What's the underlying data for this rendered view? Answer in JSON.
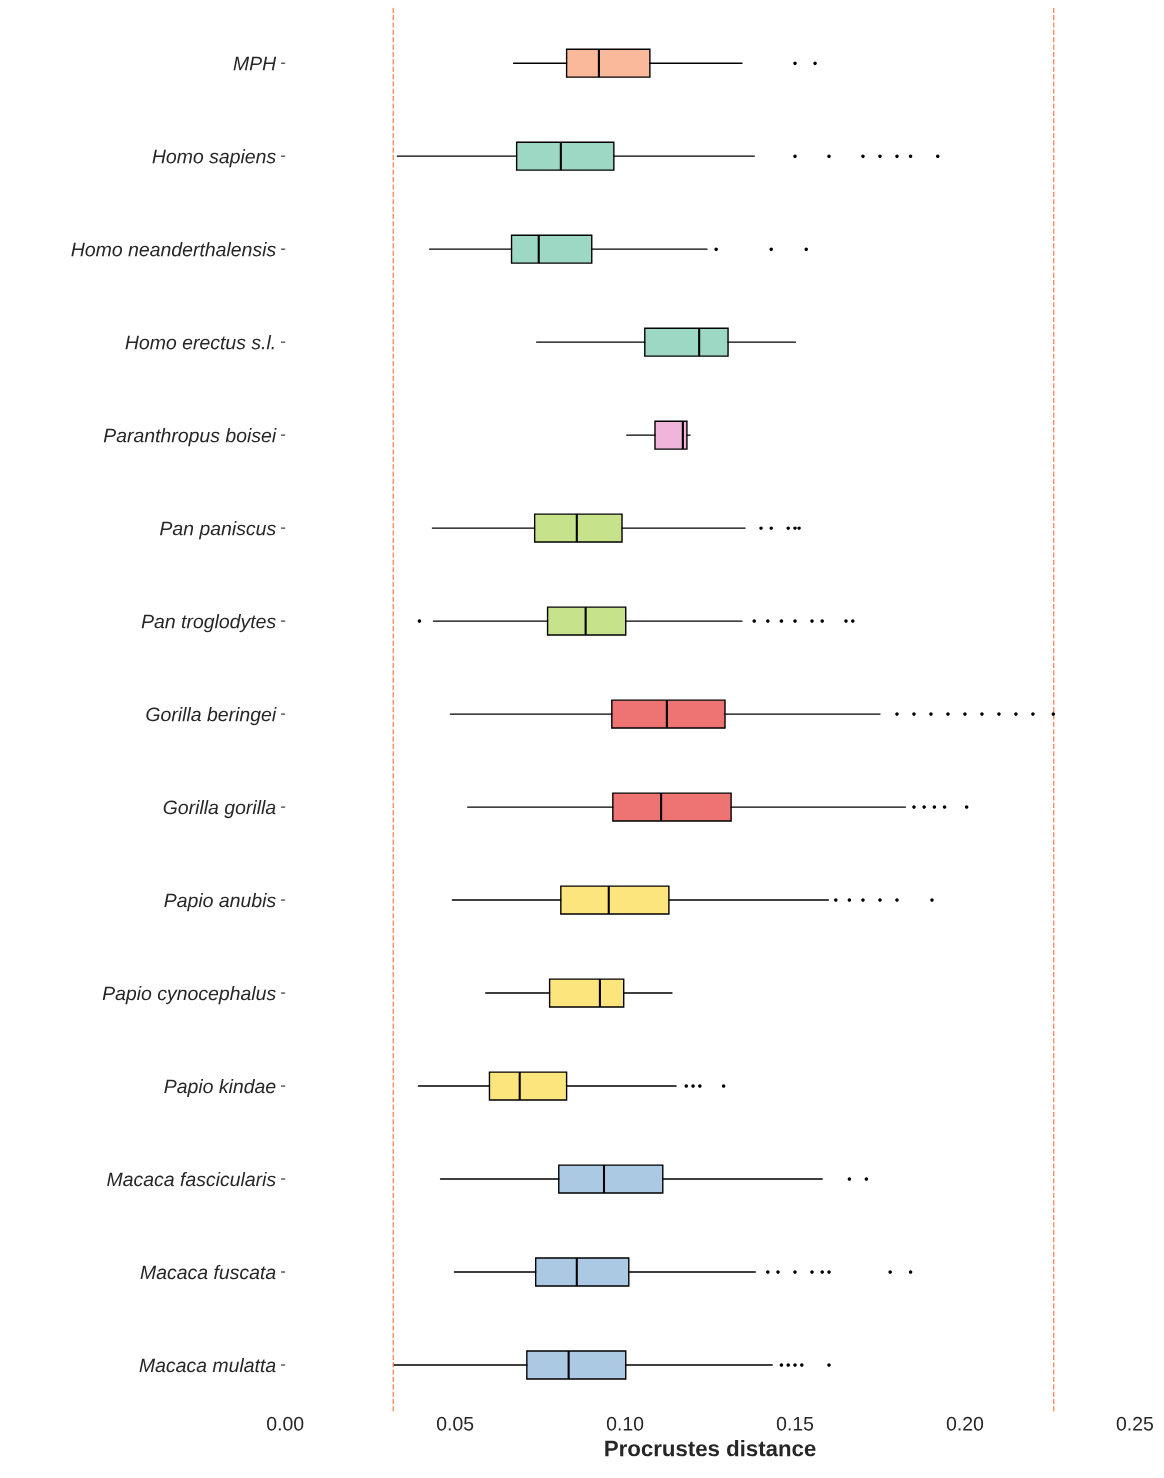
{
  "chart_data": {
    "type": "box",
    "orientation": "horizontal",
    "xlabel": "Procrustes distance",
    "grid": false,
    "legend": false,
    "categories": [
      "MPH",
      "Homo sapiens",
      "Homo neanderthalensis",
      "Homo erectus s.l.",
      "Paranthropus boisei",
      "Pan paniscus",
      "Pan troglodytes",
      "Gorilla beringei",
      "Gorilla gorilla",
      "Papio anubis",
      "Papio cynocephalus",
      "Papio kindae",
      "Macaca fascicularis",
      "Macaca fuscata",
      "Macaca mulatta"
    ],
    "xlim": [
      0,
      0.25
    ],
    "xticks": [
      {
        "value": 0,
        "label": "0.00"
      },
      0.05,
      {
        "value": 0.1,
        "label": "0.10"
      },
      0.15,
      {
        "value": 0.2,
        "label": "0.20"
      },
      0.25
    ],
    "ref_lines": [
      {
        "axis": "x",
        "value": 0.0318,
        "color": "#fc8d62",
        "line_style": "dashed"
      },
      {
        "axis": "x",
        "value": 0.2261,
        "color": "#fc8d62",
        "line_style": "dashed"
      }
    ],
    "boxes": [
      {
        "low": 0.0672,
        "q1": 0.0828,
        "median": 0.0923,
        "q3": 0.1073,
        "high": 0.1344,
        "outliers": [
          0.15,
          0.1559
        ]
      },
      {
        "low": 0.033,
        "q1": 0.0681,
        "median": 0.0811,
        "q3": 0.0967,
        "high": 0.138,
        "outliers": [
          0.15,
          0.16,
          0.17,
          0.175,
          0.18,
          0.184,
          0.192
        ]
      },
      {
        "low": 0.0425,
        "q1": 0.0666,
        "median": 0.0746,
        "q3": 0.0902,
        "high": 0.1241,
        "outliers": [
          0.1268,
          0.143,
          0.1533
        ]
      },
      {
        "low": 0.074,
        "q1": 0.1058,
        "median": 0.1218,
        "q3": 0.1303,
        "high": 0.1501
      },
      {
        "low": 0.1005,
        "q1": 0.1088,
        "median": 0.117,
        "q3": 0.1182,
        "high": 0.1191
      },
      {
        "low": 0.0433,
        "q1": 0.0734,
        "median": 0.0858,
        "q3": 0.0991,
        "high": 0.1353,
        "outliers": [
          0.14,
          0.143,
          0.148,
          0.15,
          0.1512
        ]
      },
      {
        "low": 0.0436,
        "q1": 0.0772,
        "median": 0.0884,
        "q3": 0.1002,
        "high": 0.1344,
        "outliers": [
          0.0395,
          0.138,
          0.142,
          0.146,
          0.15,
          0.155,
          0.158,
          0.165,
          0.167
        ]
      },
      {
        "low": 0.0486,
        "q1": 0.0961,
        "median": 0.1123,
        "q3": 0.1294,
        "high": 0.175,
        "outliers": [
          0.18,
          0.185,
          0.19,
          0.195,
          0.2,
          0.205,
          0.21,
          0.215,
          0.22,
          0.226
        ]
      },
      {
        "low": 0.0537,
        "q1": 0.0964,
        "median": 0.1106,
        "q3": 0.1312,
        "high": 0.1825,
        "outliers": [
          0.185,
          0.188,
          0.191,
          0.194,
          0.2005
        ]
      },
      {
        "low": 0.0492,
        "q1": 0.0811,
        "median": 0.0952,
        "q3": 0.1129,
        "high": 0.1598,
        "outliers": [
          0.162,
          0.166,
          0.17,
          0.175,
          0.18,
          0.1903
        ]
      },
      {
        "low": 0.059,
        "q1": 0.0778,
        "median": 0.0926,
        "q3": 0.0996,
        "high": 0.1138
      },
      {
        "low": 0.0392,
        "q1": 0.0601,
        "median": 0.069,
        "q3": 0.0828,
        "high": 0.115,
        "outliers": [
          0.118,
          0.12,
          0.122,
          0.129
        ]
      },
      {
        "low": 0.0457,
        "q1": 0.0805,
        "median": 0.0938,
        "q3": 0.1111,
        "high": 0.158,
        "outliers": [
          0.166,
          0.171
        ]
      },
      {
        "low": 0.0498,
        "q1": 0.0737,
        "median": 0.0858,
        "q3": 0.1011,
        "high": 0.1383,
        "outliers": [
          0.142,
          0.145,
          0.15,
          0.155,
          0.158,
          0.16,
          0.178,
          0.184
        ]
      },
      {
        "low": 0.0321,
        "q1": 0.0711,
        "median": 0.0834,
        "q3": 0.1002,
        "high": 0.1433,
        "outliers": [
          0.146,
          0.148,
          0.15,
          0.152,
          0.16
        ]
      }
    ],
    "colors": [
      "#fbb99c",
      "#9dd8c4",
      "#9dd8c4",
      "#9dd8c4",
      "#f1b4da",
      "#c6e38c",
      "#c6e38c",
      "#ee7474",
      "#ee7474",
      "#fde57e",
      "#fde57e",
      "#fde57e",
      "#abc9e3",
      "#abc9e3",
      "#abc9e3"
    ]
  }
}
